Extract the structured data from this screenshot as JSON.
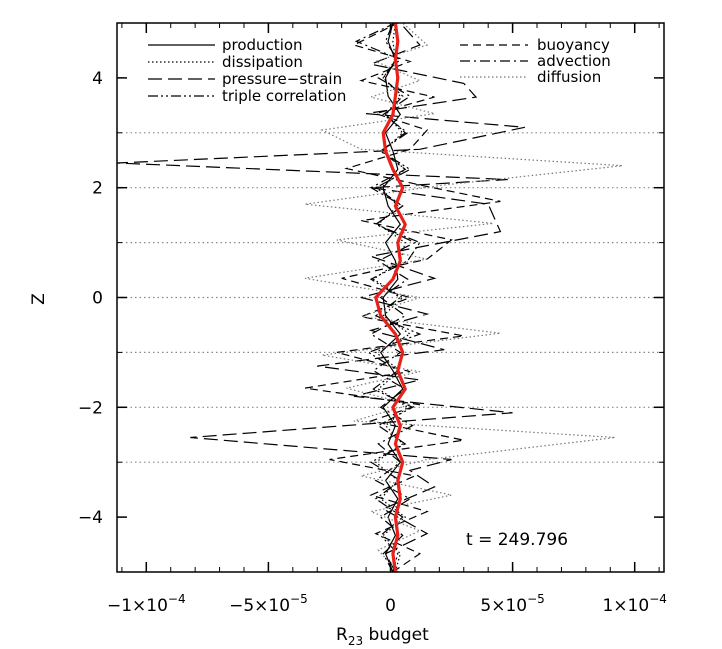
{
  "chart_data": {
    "type": "line",
    "title": "",
    "xlabel": "R",
    "xlabel_subscript": "23",
    "xlabel_suffix": " budget",
    "ylabel": "Z",
    "xlim": [
      -0.000112,
      0.000112
    ],
    "ylim": [
      -5.0,
      5.0
    ],
    "x_ticks": [
      {
        "value": -0.0001,
        "label": "−1×10",
        "exp": "−4"
      },
      {
        "value": -5e-05,
        "label": "−5×10",
        "exp": "−5"
      },
      {
        "value": 0,
        "label": "0",
        "exp": ""
      },
      {
        "value": 5e-05,
        "label": "5×10",
        "exp": "−5"
      },
      {
        "value": 0.0001,
        "label": "1×10",
        "exp": "−4"
      }
    ],
    "y_ticks": [
      {
        "value": -4,
        "label": "−4"
      },
      {
        "value": -2,
        "label": "−2"
      },
      {
        "value": 0,
        "label": "0"
      },
      {
        "value": 2,
        "label": "2"
      },
      {
        "value": 4,
        "label": "4"
      }
    ],
    "grid": false,
    "reference_lines_z": [
      -3,
      -2,
      -1,
      0,
      1,
      2,
      3
    ],
    "annotation": "t = 249.796",
    "legend": {
      "placement": "top",
      "left": [
        "production",
        "dissipation",
        "pressure−strain",
        "triple correlation"
      ],
      "right": [
        "buoyancy",
        "advection",
        "diffusion"
      ]
    },
    "colors": {
      "main": "#000000",
      "dotted_gray": "#777777",
      "highlight": "#e8211a"
    },
    "series": [
      {
        "name": "production",
        "style": "solid",
        "color": "#000000",
        "x": [
          1e-06,
          -2e-06,
          2e-06,
          -1e-06,
          3e-06,
          -2e-06,
          4e-06,
          -1e-06,
          2e-06,
          -3e-06,
          5e-06,
          1e-06,
          -4e-06,
          4e-06,
          -2e-06,
          -3e-06,
          3e-06,
          2e-06,
          -2e-06,
          4e-06,
          -1e-06,
          -3e-06,
          3e-06,
          1e-06,
          -2e-06,
          4e-06,
          -1e-06,
          -2e-06,
          2e-06,
          -1e-06,
          1e-06
        ],
        "y": [
          -5,
          -4.6667,
          -4.3333,
          -4,
          -3.6667,
          -3.3333,
          -3,
          -2.6667,
          -2.3333,
          -2,
          -1.6667,
          -1.3333,
          -1,
          -0.6667,
          -0.3333,
          0,
          0.3333,
          0.6667,
          1,
          1.3333,
          1.6667,
          2,
          2.3333,
          2.6667,
          3,
          3.3333,
          3.6667,
          4,
          4.3333,
          4.6667,
          5
        ]
      },
      {
        "name": "dissipation",
        "style": "dotted",
        "color": "#000000",
        "x": [
          2e-06,
          4e-06,
          -3e-06,
          6e-06,
          -4e-06,
          3e-06,
          -6e-06,
          5e-06,
          -2e-06,
          7e-06,
          -5e-06,
          4e-06,
          -6e-06,
          8e-06,
          -3e-06,
          5e-06,
          -7e-06,
          4e-06,
          6e-06,
          -5e-06,
          3e-06,
          -4e-06,
          6e-06,
          -3e-06,
          5e-06,
          -2e-06,
          4e-06,
          -3e-06,
          2e-06,
          1e-06,
          2e-06
        ],
        "y": [
          -5,
          -4.6667,
          -4.3333,
          -4,
          -3.6667,
          -3.3333,
          -3,
          -2.6667,
          -2.3333,
          -2,
          -1.6667,
          -1.3333,
          -1,
          -0.6667,
          -0.3333,
          0,
          0.3333,
          0.6667,
          1,
          1.3333,
          1.6667,
          2,
          2.3333,
          2.6667,
          3,
          3.3333,
          3.6667,
          4,
          4.3333,
          4.6667,
          5
        ]
      },
      {
        "name": "pressure−strain",
        "style": "longdash",
        "color": "#000000",
        "x": [
          2e-06,
          -2e-06,
          1.5e-05,
          -3e-06,
          1.8e-05,
          8e-06,
          2.5e-05,
          -8.2e-05,
          5e-05,
          -1.5e-05,
          1.2e-05,
          -3e-05,
          2.2e-05,
          -8e-06,
          1.5e-05,
          -1.2e-05,
          1.8e-05,
          -8e-06,
          4.5e-05,
          4e-05,
          -8e-06,
          4.8e-05,
          -0.000112,
          1.2e-05,
          5.5e-05,
          -1e-05,
          3.5e-05,
          3e-05,
          -8e-06,
          1.2e-05,
          4e-06
        ],
        "y": [
          -5,
          -4.6667,
          -4.3,
          -3.85,
          -3.45,
          -3.15,
          -2.95,
          -2.55,
          -2.1,
          -1.8,
          -1.5,
          -1.25,
          -0.95,
          -0.6,
          -0.3,
          0,
          0.35,
          0.75,
          1.2,
          1.7,
          2.0,
          2.15,
          2.45,
          2.7,
          3.1,
          3.35,
          3.65,
          3.9,
          4.25,
          4.6,
          5
        ]
      },
      {
        "name": "triple correlation",
        "style": "dashdotdot",
        "color": "#000000",
        "x": [
          1e-06,
          3e-06,
          -4e-06,
          5e-06,
          -6e-06,
          4e-06,
          -8e-06,
          6e-06,
          -5e-06,
          9e-06,
          -7e-06,
          3e-06,
          -9e-06,
          1.2e-05,
          -6e-06,
          4e-06,
          -8e-06,
          7e-06,
          1.2e-05,
          -6e-06,
          5e-06,
          -6e-06,
          8e-06,
          -4e-06,
          6e-06,
          -2e-06,
          5e-06,
          -3e-06,
          3e-06,
          -2e-06,
          1e-06
        ],
        "y": [
          -5,
          -4.6667,
          -4.3333,
          -4,
          -3.6667,
          -3.3333,
          -3,
          -2.6667,
          -2.3333,
          -2,
          -1.6667,
          -1.3333,
          -1,
          -0.6667,
          -0.3333,
          0,
          0.3333,
          0.6667,
          1,
          1.3333,
          1.6667,
          2,
          2.3333,
          2.6667,
          3,
          3.3333,
          3.6667,
          4,
          4.3333,
          4.6667,
          5
        ]
      },
      {
        "name": "buoyancy",
        "style": "dash",
        "color": "#000000",
        "x": [
          1e-06,
          1.2e-05,
          -6e-06,
          1.5e-05,
          -8e-06,
          1e-05,
          -2.5e-05,
          3e-05,
          -8e-06,
          1.2e-05,
          -3.5e-05,
          8e-06,
          -2.2e-05,
          3e-05,
          -1.2e-05,
          8e-06,
          -2e-05,
          1.5e-05,
          2.5e-05,
          -1.2e-05,
          4.5e-05,
          1.2e-05,
          -1.8e-05,
          8e-06,
          1.5e-05,
          -6e-06,
          1.8e-05,
          -1.2e-05,
          8e-06,
          -1.5e-05,
          3e-06
        ],
        "y": [
          -5,
          -4.6667,
          -4.3,
          -3.9,
          -3.6,
          -3.25,
          -2.95,
          -2.6,
          -2.25,
          -1.95,
          -1.65,
          -1.35,
          -1,
          -0.7,
          -0.35,
          0,
          0.35,
          0.7,
          1.05,
          1.4,
          1.75,
          2.05,
          2.35,
          2.7,
          3.05,
          3.35,
          3.65,
          3.95,
          4.3,
          4.6,
          5
        ]
      },
      {
        "name": "advection",
        "style": "dashdot",
        "color": "#000000",
        "x": [
          1e-06,
          -3e-06,
          5e-06,
          -4e-06,
          8e-06,
          -6e-06,
          4e-06,
          -5e-06,
          9e-06,
          -4e-06,
          6e-06,
          -7e-06,
          4e-06,
          -8e-06,
          6e-06,
          -4e-06,
          7e-06,
          -5e-06,
          1e-05,
          -6e-06,
          5e-06,
          -8e-06,
          6e-06,
          -4e-06,
          7e-06,
          -3e-06,
          8e-06,
          -5e-06,
          4e-06,
          -1.4e-05,
          2e-06
        ],
        "y": [
          -5,
          -4.6667,
          -4.3333,
          -4,
          -3.6667,
          -3.3333,
          -3,
          -2.6667,
          -2.3333,
          -2,
          -1.6667,
          -1.3333,
          -1,
          -0.6667,
          -0.3333,
          0,
          0.3333,
          0.6667,
          1,
          1.3333,
          1.6667,
          2,
          2.3333,
          2.6667,
          3,
          3.3333,
          3.6667,
          4,
          4.3333,
          4.6667,
          5
        ]
      },
      {
        "name": "diffusion",
        "style": "dotted",
        "color": "#777777",
        "x": [
          3e-06,
          -5e-06,
          1.2e-05,
          -8e-06,
          2.5e-05,
          -1.2e-05,
          1.5e-05,
          9.2e-05,
          -1.5e-05,
          8e-06,
          -1.8e-05,
          1.2e-05,
          -2.8e-05,
          4.5e-05,
          -1.2e-05,
          1.2e-05,
          -3.5e-05,
          1.5e-05,
          -2.2e-05,
          4.2e-05,
          -3.5e-05,
          2.2e-05,
          9.5e-05,
          -1.2e-05,
          -2.8e-05,
          1.8e-05,
          -8e-06,
          1.2e-05,
          -6e-06,
          1.5e-05,
          5e-06
        ],
        "y": [
          -5,
          -4.6,
          -4.25,
          -3.9,
          -3.6,
          -3.25,
          -2.95,
          -2.55,
          -2.25,
          -1.95,
          -1.65,
          -1.35,
          -1.05,
          -0.65,
          -0.35,
          0,
          0.35,
          0.7,
          1.05,
          1.35,
          1.7,
          2.05,
          2.4,
          2.7,
          3.05,
          3.35,
          3.65,
          3.95,
          4.3,
          4.6,
          5
        ]
      },
      {
        "name": "",
        "style": "bold",
        "color": "#e8211a",
        "x": [
          2e-06,
          1e-06,
          3e-06,
          2e-06,
          4e-06,
          3e-06,
          5e-06,
          2e-06,
          4e-06,
          1e-06,
          6e-06,
          3e-06,
          5e-06,
          2e-06,
          -4e-06,
          -6e-06,
          1e-06,
          4e-06,
          3e-06,
          6e-06,
          2e-06,
          5e-06,
          1e-06,
          -2e-06,
          -3e-06,
          1e-06,
          2e-06,
          3e-06,
          2e-06,
          3e-06,
          2e-06
        ],
        "y": [
          -5,
          -4.6667,
          -4.3333,
          -4,
          -3.6667,
          -3.3333,
          -3,
          -2.6667,
          -2.3333,
          -2,
          -1.6667,
          -1.3333,
          -1,
          -0.6667,
          -0.3333,
          0,
          0.3333,
          0.6667,
          1,
          1.3333,
          1.6667,
          2,
          2.3333,
          2.6667,
          3,
          3.3333,
          3.6667,
          4,
          4.3333,
          4.6667,
          5
        ]
      }
    ]
  }
}
